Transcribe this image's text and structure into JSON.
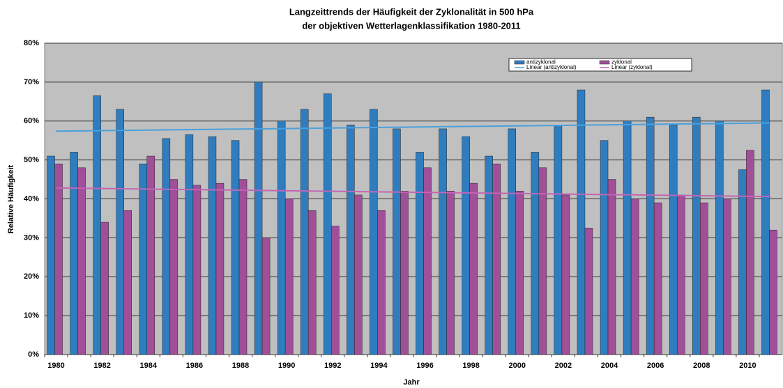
{
  "chart_data": {
    "type": "bar",
    "title": "Langzeittrends der Häufigkeit der Zyklonalität in 500 hPa",
    "subtitle": "der objektiven Wetterlagenklassifikation  1980-2011",
    "x_label": "Jahr",
    "y_label": "Relative Häufigkeit",
    "categories": [
      "1980",
      null,
      "1982",
      null,
      "1984",
      null,
      "1986",
      null,
      "1988",
      null,
      "1990",
      null,
      "1992",
      null,
      "1994",
      null,
      "1996",
      null,
      "1998",
      null,
      "2000",
      null,
      "2002",
      null,
      "2004",
      null,
      "2006",
      null,
      "2008",
      null,
      "2010",
      null
    ],
    "series": [
      {
        "name": "antizyklonal",
        "color": "#2f7dbf",
        "values": [
          51,
          52,
          66.5,
          63,
          49,
          55.5,
          56.5,
          56,
          55,
          70,
          60,
          63,
          67,
          59,
          63,
          58,
          52,
          58,
          56,
          51,
          58,
          52,
          59,
          68,
          55,
          60,
          61,
          59,
          61,
          60,
          47.5,
          68
        ]
      },
      {
        "name": "zyklonal",
        "color": "#a04f98",
        "values": [
          49,
          48,
          34,
          37,
          51,
          45,
          43.5,
          44,
          45,
          30,
          40,
          37,
          33,
          41,
          37,
          42,
          48,
          42,
          44,
          49,
          42,
          48,
          41,
          32.5,
          45,
          40,
          39,
          41,
          39,
          40,
          52.5,
          32
        ]
      }
    ],
    "trend_lines": [
      {
        "name": "Linear (antizyklonal)",
        "color": "#4aa0dc",
        "values": [
          57.4,
          59.5
        ]
      },
      {
        "name": "Linear (zyklonal)",
        "color": "#c265b6",
        "values": [
          42.8,
          40.6
        ]
      }
    ],
    "ylim": [
      0,
      80
    ],
    "yticks": [
      {
        "value": 0,
        "label": "0%"
      },
      {
        "value": 10,
        "label": "10%"
      },
      {
        "value": 20,
        "label": "20%"
      },
      {
        "value": 30,
        "label": "30%"
      },
      {
        "value": 40,
        "label": "40%"
      },
      {
        "value": 50,
        "label": "50%"
      },
      {
        "value": 60,
        "label": "60%"
      },
      {
        "value": 70,
        "label": "70%"
      },
      {
        "value": 80,
        "label": "80%"
      }
    ],
    "grid": true
  }
}
